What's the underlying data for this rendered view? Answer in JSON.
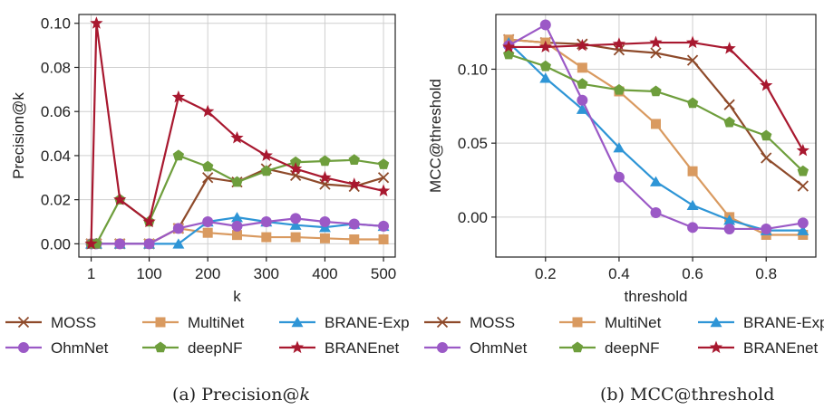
{
  "chart_data": [
    {
      "type": "line",
      "caption_prefix": "(a) Precision@",
      "caption_var": "k",
      "xlabel": "k",
      "ylabel": "Precision@k",
      "xlim": [
        -20,
        520
      ],
      "ylim": [
        -0.006,
        0.104
      ],
      "xticks": [
        1,
        100,
        200,
        300,
        400,
        500
      ],
      "xtick_labels": [
        "1",
        "100",
        "200",
        "300",
        "400",
        "500"
      ],
      "yticks": [
        0.0,
        0.02,
        0.04,
        0.06,
        0.08,
        0.1
      ],
      "ytick_labels": [
        "0.00",
        "0.02",
        "0.04",
        "0.06",
        "0.08",
        "0.10"
      ],
      "grid": true,
      "x": [
        1,
        10,
        50,
        100,
        150,
        200,
        250,
        300,
        350,
        400,
        450,
        500
      ],
      "series": [
        {
          "name": "MOSS",
          "color": "#8e4a2a",
          "marker": "x",
          "values": [
            0.0,
            0.0,
            0.0,
            0.0,
            0.007,
            0.03,
            0.028,
            0.034,
            0.031,
            0.027,
            0.026,
            0.03
          ]
        },
        {
          "name": "MultiNet",
          "color": "#d99a60",
          "marker": "square",
          "values": [
            0.0,
            0.0,
            0.0,
            0.0,
            0.007,
            0.005,
            0.004,
            0.003,
            0.003,
            0.0025,
            0.002,
            0.002
          ]
        },
        {
          "name": "BRANE-Exp",
          "color": "#2e95d6",
          "marker": "triangle",
          "values": [
            0.0,
            0.0,
            0.0,
            0.0,
            0.0,
            0.01,
            0.012,
            0.01,
            0.0085,
            0.0075,
            0.009,
            0.008
          ]
        },
        {
          "name": "OhmNet",
          "color": "#9b59c6",
          "marker": "circle",
          "values": [
            0.0,
            0.0,
            0.0,
            0.0,
            0.007,
            0.01,
            0.008,
            0.01,
            0.0115,
            0.01,
            0.009,
            0.008
          ]
        },
        {
          "name": "deepNF",
          "color": "#6e9e3c",
          "marker": "pentagon",
          "values": [
            0.0,
            0.0,
            0.02,
            0.01,
            0.04,
            0.035,
            0.028,
            0.033,
            0.037,
            0.0375,
            0.038,
            0.036
          ]
        },
        {
          "name": "BRANEnet",
          "color": "#a8182f",
          "marker": "star",
          "values": [
            0.0,
            0.1,
            0.02,
            0.01,
            0.0665,
            0.06,
            0.048,
            0.04,
            0.034,
            0.03,
            0.027,
            0.024
          ]
        }
      ]
    },
    {
      "type": "line",
      "caption_prefix": "(b) MCC@threshold",
      "caption_var": "",
      "xlabel": "threshold",
      "ylabel": "MCC@threshold",
      "xlim": [
        0.065,
        0.935
      ],
      "ylim": [
        -0.027,
        0.137
      ],
      "xticks": [
        0.2,
        0.4,
        0.6,
        0.8
      ],
      "xtick_labels": [
        "0.2",
        "0.4",
        "0.6",
        "0.8"
      ],
      "yticks": [
        0.0,
        0.05,
        0.1
      ],
      "ytick_labels": [
        "0.00",
        "0.05",
        "0.10"
      ],
      "grid": true,
      "x": [
        0.1,
        0.2,
        0.3,
        0.4,
        0.5,
        0.6,
        0.7,
        0.8,
        0.9
      ],
      "series": [
        {
          "name": "MOSS",
          "color": "#8e4a2a",
          "marker": "x",
          "values": [
            0.12,
            0.118,
            0.117,
            0.113,
            0.111,
            0.106,
            0.076,
            0.04,
            0.021
          ]
        },
        {
          "name": "MultiNet",
          "color": "#d99a60",
          "marker": "square",
          "values": [
            0.12,
            0.118,
            0.101,
            0.085,
            0.063,
            0.031,
            0.0,
            -0.012,
            -0.012
          ]
        },
        {
          "name": "BRANE-Exp",
          "color": "#2e95d6",
          "marker": "triangle",
          "values": [
            0.118,
            0.094,
            0.073,
            0.047,
            0.024,
            0.008,
            -0.002,
            -0.009,
            -0.009
          ]
        },
        {
          "name": "OhmNet",
          "color": "#9b59c6",
          "marker": "circle",
          "values": [
            0.116,
            0.13,
            0.079,
            0.027,
            0.003,
            -0.007,
            -0.008,
            -0.008,
            -0.004
          ]
        },
        {
          "name": "deepNF",
          "color": "#6e9e3c",
          "marker": "pentagon",
          "values": [
            0.11,
            0.102,
            0.09,
            0.086,
            0.085,
            0.077,
            0.064,
            0.055,
            0.031
          ]
        },
        {
          "name": "BRANEnet",
          "color": "#a8182f",
          "marker": "star",
          "values": [
            0.115,
            0.115,
            0.116,
            0.117,
            0.118,
            0.118,
            0.114,
            0.089,
            0.045
          ]
        }
      ]
    }
  ]
}
